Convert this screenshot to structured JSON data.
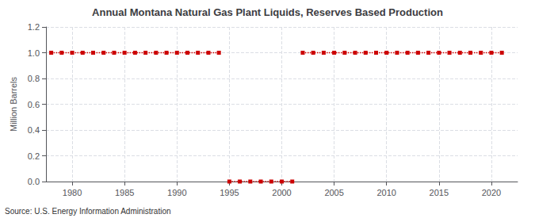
{
  "chart_data": {
    "type": "line",
    "title": "Annual Montana Natural Gas Plant Liquids, Reserves Based Production",
    "ylabel": "Million Barrels",
    "source": "Source: U.S. Energy Information Administration",
    "color": "#cc0000",
    "marker": "square",
    "line_style": "dotted",
    "grid": true,
    "xlim": [
      1977.5,
      2022.5
    ],
    "xticks": [
      1980,
      1985,
      1990,
      1995,
      2000,
      2005,
      2010,
      2015,
      2020
    ],
    "ylim": [
      0,
      1.2
    ],
    "yticks": [
      {
        "value": 0.0,
        "label": "0.0"
      },
      {
        "value": 0.2,
        "label": "0.2"
      },
      {
        "value": 0.4,
        "label": "0.4"
      },
      {
        "value": 0.6,
        "label": "0.6"
      },
      {
        "value": 0.8,
        "label": "0.8"
      },
      {
        "value": 1.0,
        "label": "1.0"
      },
      {
        "value": 1.2,
        "label": "1.2"
      }
    ],
    "x": [
      1978,
      1979,
      1980,
      1981,
      1982,
      1983,
      1984,
      1985,
      1986,
      1987,
      1988,
      1989,
      1990,
      1991,
      1992,
      1993,
      1994,
      1994.5,
      1995,
      1996,
      1997,
      1998,
      1999,
      2000,
      2001,
      2001.5,
      2002,
      2003,
      2004,
      2005,
      2006,
      2007,
      2008,
      2009,
      2010,
      2011,
      2012,
      2013,
      2014,
      2015,
      2016,
      2017,
      2018,
      2019,
      2020,
      2021
    ],
    "values": [
      1.0,
      1.0,
      1.0,
      1.0,
      1.0,
      1.0,
      1.0,
      1.0,
      1.0,
      1.0,
      1.0,
      1.0,
      1.0,
      1.0,
      1.0,
      1.0,
      1.0,
      null,
      0.0,
      0.0,
      0.0,
      0.0,
      0.0,
      0.0,
      0.0,
      null,
      1.0,
      1.0,
      1.0,
      1.0,
      1.0,
      1.0,
      1.0,
      1.0,
      1.0,
      1.0,
      1.0,
      1.0,
      1.0,
      1.0,
      1.0,
      1.0,
      1.0,
      1.0,
      1.0,
      1.0
    ]
  }
}
